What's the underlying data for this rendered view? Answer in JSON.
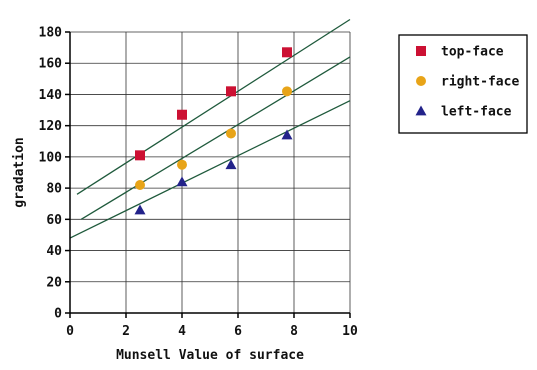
{
  "chart_data": {
    "type": "scatter",
    "xlabel": "Munsell Value of surface",
    "ylabel": "gradation",
    "xlim": [
      0,
      10
    ],
    "ylim": [
      0,
      180
    ],
    "xticks": [
      0,
      2,
      4,
      6,
      8,
      10
    ],
    "yticks": [
      0,
      20,
      40,
      60,
      80,
      100,
      120,
      140,
      160,
      180
    ],
    "grid": true,
    "legend_position": "right",
    "series": [
      {
        "name": "top-face",
        "marker": "square",
        "color": "#cc1133",
        "x": [
          2.5,
          4.0,
          5.75,
          7.75
        ],
        "y": [
          101,
          127,
          142,
          167
        ],
        "fit_line": [
          [
            0.25,
            76
          ],
          [
            10,
            188
          ]
        ]
      },
      {
        "name": "right-face",
        "marker": "circle",
        "color": "#e8a418",
        "x": [
          2.5,
          4.0,
          5.75,
          7.75
        ],
        "y": [
          82,
          95,
          115,
          142
        ],
        "fit_line": [
          [
            0.4,
            60
          ],
          [
            10,
            164
          ]
        ]
      },
      {
        "name": "left-face",
        "marker": "triangle",
        "color": "#23238a",
        "x": [
          2.5,
          4.0,
          5.75,
          7.75
        ],
        "y": [
          66,
          84,
          95,
          114
        ],
        "fit_line": [
          [
            0,
            48
          ],
          [
            10,
            136
          ]
        ]
      }
    ]
  }
}
